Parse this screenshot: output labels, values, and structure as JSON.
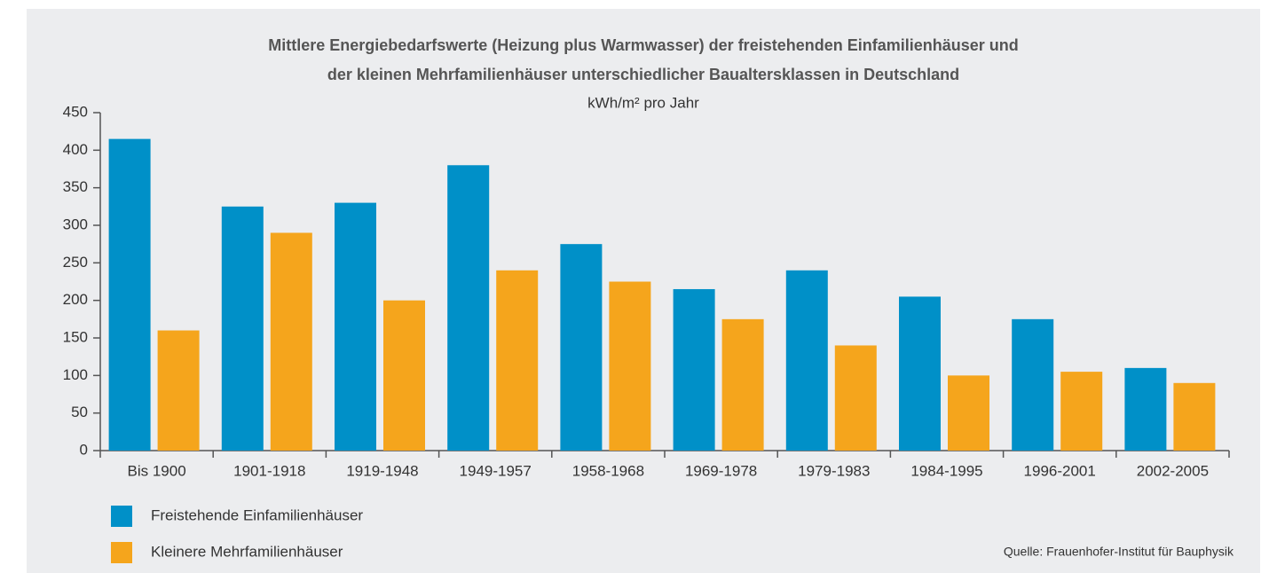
{
  "chart_data": {
    "type": "bar",
    "title": [
      "Mittlere Energiebedarfswerte (Heizung plus Warmwasser) der freistehenden Einfamilienhäuser und",
      "der kleinen Mehrfamilienhäuser unterschiedlicher Baualtersklassen in Deutschland"
    ],
    "subtitle": "kWh/m² pro Jahr",
    "categories": [
      "Bis 1900",
      "1901-1918",
      "1919-1948",
      "1949-1957",
      "1958-1968",
      "1969-1978",
      "1979-1983",
      "1984-1995",
      "1996-2001",
      "2002-2005"
    ],
    "series": [
      {
        "name": "Freistehende Einfamilienhäuser",
        "color": "#0090c8",
        "values": [
          415,
          325,
          330,
          380,
          275,
          215,
          240,
          205,
          175,
          110
        ]
      },
      {
        "name": "Kleinere Mehrfamilienhäuser",
        "color": "#f5a51c",
        "values": [
          160,
          290,
          200,
          240,
          225,
          175,
          140,
          100,
          105,
          90
        ]
      }
    ],
    "ylim": [
      0,
      450
    ],
    "yticks": [
      0,
      50,
      100,
      150,
      200,
      250,
      300,
      350,
      400,
      450
    ],
    "source": "Quelle: Frauenhofer-Institut für Bauphysik",
    "legend": "bottom-left"
  }
}
